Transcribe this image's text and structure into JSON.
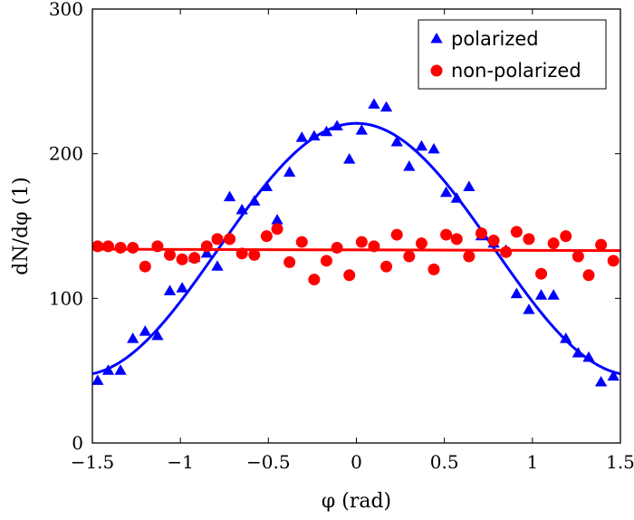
{
  "chart_data": {
    "type": "scatter",
    "xlabel": "φ (rad)",
    "ylabel": "dN/dφ (1)",
    "xlim": [
      -1.5,
      1.5
    ],
    "ylim": [
      0,
      300
    ],
    "xticks": [
      -1.5,
      -1,
      -0.5,
      0,
      0.5,
      1,
      1.5
    ],
    "xtick_labels": [
      "−1.5",
      "−1",
      "−0.5",
      "0",
      "0.5",
      "1",
      "1.5"
    ],
    "yticks": [
      0,
      100,
      200,
      300
    ],
    "ytick_labels": [
      "0",
      "100",
      "200",
      "300"
    ],
    "grid": false,
    "legend_position": "top-right",
    "series": [
      {
        "name": "polarized",
        "marker": "triangle",
        "color": "#0000ff",
        "points": [
          [
            -1.47,
            43
          ],
          [
            -1.41,
            50
          ],
          [
            -1.34,
            50
          ],
          [
            -1.27,
            72
          ],
          [
            -1.2,
            77
          ],
          [
            -1.13,
            74
          ],
          [
            -1.06,
            105
          ],
          [
            -0.99,
            107
          ],
          [
            -0.92,
            128
          ],
          [
            -0.85,
            131
          ],
          [
            -0.79,
            122
          ],
          [
            -0.72,
            170
          ],
          [
            -0.65,
            161
          ],
          [
            -0.58,
            167
          ],
          [
            -0.51,
            177
          ],
          [
            -0.45,
            154
          ],
          [
            -0.38,
            187
          ],
          [
            -0.31,
            211
          ],
          [
            -0.24,
            212
          ],
          [
            -0.17,
            215
          ],
          [
            -0.11,
            219
          ],
          [
            -0.04,
            196
          ],
          [
            0.03,
            216
          ],
          [
            0.1,
            234
          ],
          [
            0.17,
            232
          ],
          [
            0.23,
            208
          ],
          [
            0.3,
            191
          ],
          [
            0.37,
            205
          ],
          [
            0.44,
            203
          ],
          [
            0.51,
            173
          ],
          [
            0.57,
            169
          ],
          [
            0.64,
            177
          ],
          [
            0.71,
            143
          ],
          [
            0.78,
            138
          ],
          [
            0.85,
            133
          ],
          [
            0.91,
            103
          ],
          [
            0.98,
            92
          ],
          [
            1.05,
            102
          ],
          [
            1.12,
            102
          ],
          [
            1.19,
            72
          ],
          [
            1.26,
            62
          ],
          [
            1.32,
            59
          ],
          [
            1.39,
            42
          ],
          [
            1.46,
            46
          ]
        ],
        "fit_curve": {
          "label": "",
          "color": "#0000ff",
          "form": "a + b*cos(2x)",
          "a": 134,
          "b": 87
        }
      },
      {
        "name": "non-polarized",
        "marker": "circle",
        "color": "#ff0000",
        "points": [
          [
            -1.47,
            136
          ],
          [
            -1.41,
            136
          ],
          [
            -1.34,
            135
          ],
          [
            -1.27,
            135
          ],
          [
            -1.2,
            122
          ],
          [
            -1.13,
            136
          ],
          [
            -1.06,
            130
          ],
          [
            -0.99,
            127
          ],
          [
            -0.92,
            128
          ],
          [
            -0.85,
            136
          ],
          [
            -0.79,
            141
          ],
          [
            -0.72,
            141
          ],
          [
            -0.65,
            131
          ],
          [
            -0.58,
            130
          ],
          [
            -0.51,
            143
          ],
          [
            -0.45,
            148
          ],
          [
            -0.38,
            125
          ],
          [
            -0.31,
            139
          ],
          [
            -0.24,
            113
          ],
          [
            -0.17,
            126
          ],
          [
            -0.11,
            135
          ],
          [
            -0.04,
            116
          ],
          [
            0.03,
            139
          ],
          [
            0.1,
            136
          ],
          [
            0.17,
            122
          ],
          [
            0.23,
            144
          ],
          [
            0.3,
            129
          ],
          [
            0.37,
            138
          ],
          [
            0.44,
            120
          ],
          [
            0.51,
            144
          ],
          [
            0.57,
            141
          ],
          [
            0.64,
            129
          ],
          [
            0.71,
            145
          ],
          [
            0.78,
            140
          ],
          [
            0.85,
            132
          ],
          [
            0.91,
            146
          ],
          [
            0.98,
            141
          ],
          [
            1.05,
            117
          ],
          [
            1.12,
            138
          ],
          [
            1.19,
            143
          ],
          [
            1.26,
            129
          ],
          [
            1.32,
            116
          ],
          [
            1.39,
            137
          ],
          [
            1.46,
            126
          ]
        ],
        "fit_curve": {
          "label": "",
          "color": "#ff0000",
          "form": "linear",
          "from": [
            -1.5,
            134
          ],
          "to": [
            1.5,
            133
          ]
        }
      }
    ]
  }
}
